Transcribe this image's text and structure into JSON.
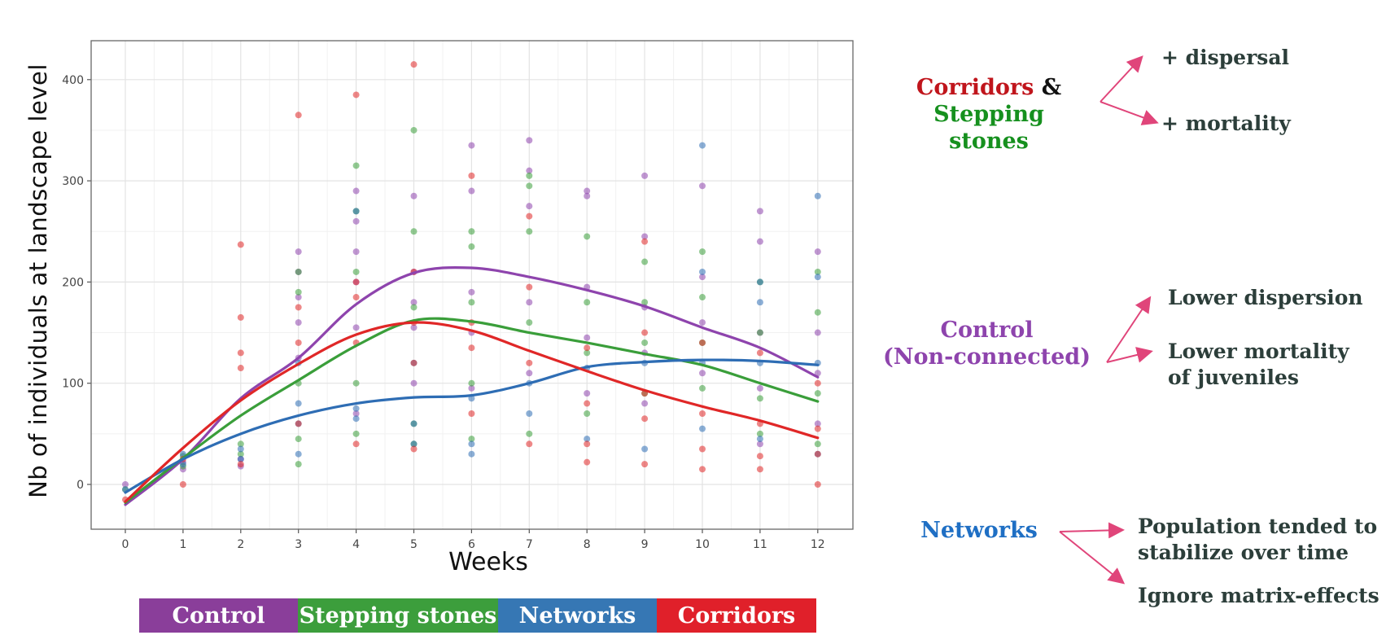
{
  "chart_data": {
    "type": "scatter",
    "ylabel": "Nb of individuals at landscape level",
    "xlabel": "Weeks",
    "x_ticks": [
      "0",
      "1",
      "2",
      "3",
      "4",
      "5",
      "6",
      "7",
      "8",
      "9",
      "10",
      "11",
      "12"
    ],
    "y_ticks": [
      "0",
      "100",
      "200",
      "300",
      "400"
    ],
    "xlim": [
      -0.6,
      12.6
    ],
    "ylim": [
      -45,
      440
    ],
    "grid": true,
    "legend_position": "bottom",
    "series": [
      {
        "name": "Control",
        "color": "#8e44ad",
        "points": [
          [
            0,
            0
          ],
          [
            1,
            15
          ],
          [
            1,
            22
          ],
          [
            2,
            18
          ],
          [
            2,
            25
          ],
          [
            3,
            230
          ],
          [
            3,
            210
          ],
          [
            3,
            185
          ],
          [
            3,
            160
          ],
          [
            3,
            125
          ],
          [
            4,
            290
          ],
          [
            4,
            260
          ],
          [
            4,
            230
          ],
          [
            4,
            200
          ],
          [
            4,
            155
          ],
          [
            4,
            70
          ],
          [
            5,
            285
          ],
          [
            5,
            210
          ],
          [
            5,
            180
          ],
          [
            5,
            155
          ],
          [
            5,
            100
          ],
          [
            6,
            335
          ],
          [
            6,
            290
          ],
          [
            6,
            190
          ],
          [
            6,
            150
          ],
          [
            6,
            95
          ],
          [
            7,
            340
          ],
          [
            7,
            310
          ],
          [
            7,
            275
          ],
          [
            7,
            180
          ],
          [
            7,
            110
          ],
          [
            8,
            290
          ],
          [
            8,
            285
          ],
          [
            8,
            195
          ],
          [
            8,
            145
          ],
          [
            8,
            90
          ],
          [
            9,
            305
          ],
          [
            9,
            245
          ],
          [
            9,
            175
          ],
          [
            9,
            130
          ],
          [
            9,
            80
          ],
          [
            10,
            295
          ],
          [
            10,
            205
          ],
          [
            10,
            160
          ],
          [
            10,
            110
          ],
          [
            11,
            270
          ],
          [
            11,
            240
          ],
          [
            11,
            150
          ],
          [
            11,
            95
          ],
          [
            11,
            40
          ],
          [
            12,
            230
          ],
          [
            12,
            150
          ],
          [
            12,
            110
          ],
          [
            12,
            60
          ]
        ],
        "trend": [
          [
            0,
            -20
          ],
          [
            1,
            25
          ],
          [
            2,
            85
          ],
          [
            3,
            125
          ],
          [
            4,
            178
          ],
          [
            5,
            209
          ],
          [
            6,
            214
          ],
          [
            7,
            205
          ],
          [
            8,
            192
          ],
          [
            9,
            176
          ],
          [
            10,
            155
          ],
          [
            11,
            135
          ],
          [
            12,
            106
          ]
        ]
      },
      {
        "name": "Stepping stones",
        "color": "#3a9e3a",
        "points": [
          [
            0,
            -5
          ],
          [
            1,
            18
          ],
          [
            1,
            28
          ],
          [
            2,
            30
          ],
          [
            2,
            40
          ],
          [
            3,
            210
          ],
          [
            3,
            190
          ],
          [
            3,
            100
          ],
          [
            3,
            45
          ],
          [
            3,
            20
          ],
          [
            4,
            315
          ],
          [
            4,
            270
          ],
          [
            4,
            210
          ],
          [
            4,
            100
          ],
          [
            4,
            50
          ],
          [
            5,
            350
          ],
          [
            5,
            250
          ],
          [
            5,
            175
          ],
          [
            5,
            60
          ],
          [
            5,
            40
          ],
          [
            6,
            250
          ],
          [
            6,
            235
          ],
          [
            6,
            180
          ],
          [
            6,
            100
          ],
          [
            6,
            45
          ],
          [
            7,
            305
          ],
          [
            7,
            295
          ],
          [
            7,
            250
          ],
          [
            7,
            160
          ],
          [
            7,
            50
          ],
          [
            8,
            245
          ],
          [
            8,
            180
          ],
          [
            8,
            130
          ],
          [
            8,
            70
          ],
          [
            9,
            220
          ],
          [
            9,
            180
          ],
          [
            9,
            140
          ],
          [
            9,
            90
          ],
          [
            10,
            230
          ],
          [
            10,
            185
          ],
          [
            10,
            140
          ],
          [
            10,
            95
          ],
          [
            11,
            200
          ],
          [
            11,
            150
          ],
          [
            11,
            85
          ],
          [
            11,
            50
          ],
          [
            12,
            210
          ],
          [
            12,
            170
          ],
          [
            12,
            90
          ],
          [
            12,
            40
          ]
        ],
        "trend": [
          [
            0,
            -18
          ],
          [
            1,
            26
          ],
          [
            2,
            68
          ],
          [
            3,
            103
          ],
          [
            4,
            137
          ],
          [
            5,
            162
          ],
          [
            6,
            161
          ],
          [
            7,
            150
          ],
          [
            8,
            140
          ],
          [
            9,
            129
          ],
          [
            10,
            118
          ],
          [
            11,
            100
          ],
          [
            12,
            82
          ]
        ]
      },
      {
        "name": "Networks",
        "color": "#2e6db4",
        "points": [
          [
            0,
            -5
          ],
          [
            1,
            20
          ],
          [
            1,
            30
          ],
          [
            2,
            25
          ],
          [
            2,
            35
          ],
          [
            3,
            120
          ],
          [
            3,
            80
          ],
          [
            3,
            60
          ],
          [
            3,
            30
          ],
          [
            4,
            270
          ],
          [
            4,
            75
          ],
          [
            4,
            65
          ],
          [
            5,
            120
          ],
          [
            5,
            60
          ],
          [
            5,
            40
          ],
          [
            6,
            85
          ],
          [
            6,
            40
          ],
          [
            6,
            30
          ],
          [
            7,
            100
          ],
          [
            7,
            70
          ],
          [
            8,
            115
          ],
          [
            8,
            45
          ],
          [
            9,
            120
          ],
          [
            9,
            35
          ],
          [
            10,
            335
          ],
          [
            10,
            210
          ],
          [
            10,
            120
          ],
          [
            10,
            55
          ],
          [
            11,
            200
          ],
          [
            11,
            180
          ],
          [
            11,
            120
          ],
          [
            11,
            45
          ],
          [
            12,
            285
          ],
          [
            12,
            205
          ],
          [
            12,
            120
          ],
          [
            12,
            30
          ]
        ],
        "trend": [
          [
            0,
            -8
          ],
          [
            1,
            25
          ],
          [
            2,
            50
          ],
          [
            3,
            68
          ],
          [
            4,
            80
          ],
          [
            5,
            86
          ],
          [
            6,
            88
          ],
          [
            7,
            100
          ],
          [
            8,
            116
          ],
          [
            9,
            121
          ],
          [
            10,
            123
          ],
          [
            11,
            122
          ],
          [
            12,
            118
          ]
        ]
      },
      {
        "name": "Corridors",
        "color": "#e02727",
        "points": [
          [
            0,
            -15
          ],
          [
            1,
            0
          ],
          [
            1,
            25
          ],
          [
            2,
            237
          ],
          [
            2,
            165
          ],
          [
            2,
            130
          ],
          [
            2,
            115
          ],
          [
            2,
            20
          ],
          [
            3,
            365
          ],
          [
            3,
            175
          ],
          [
            3,
            140
          ],
          [
            3,
            60
          ],
          [
            4,
            385
          ],
          [
            4,
            200
          ],
          [
            4,
            185
          ],
          [
            4,
            140
          ],
          [
            4,
            40
          ],
          [
            5,
            415
          ],
          [
            5,
            210
          ],
          [
            5,
            160
          ],
          [
            5,
            120
          ],
          [
            5,
            35
          ],
          [
            6,
            305
          ],
          [
            6,
            160
          ],
          [
            6,
            135
          ],
          [
            6,
            70
          ],
          [
            7,
            265
          ],
          [
            7,
            195
          ],
          [
            7,
            120
          ],
          [
            7,
            40
          ],
          [
            8,
            135
          ],
          [
            8,
            80
          ],
          [
            8,
            40
          ],
          [
            8,
            22
          ],
          [
            9,
            240
          ],
          [
            9,
            150
          ],
          [
            9,
            90
          ],
          [
            9,
            65
          ],
          [
            9,
            20
          ],
          [
            10,
            140
          ],
          [
            10,
            70
          ],
          [
            10,
            35
          ],
          [
            10,
            15
          ],
          [
            11,
            130
          ],
          [
            11,
            60
          ],
          [
            11,
            28
          ],
          [
            11,
            15
          ],
          [
            12,
            100
          ],
          [
            12,
            55
          ],
          [
            12,
            30
          ],
          [
            12,
            0
          ]
        ],
        "trend": [
          [
            0,
            -17
          ],
          [
            1,
            36
          ],
          [
            2,
            83
          ],
          [
            3,
            119
          ],
          [
            4,
            148
          ],
          [
            5,
            160
          ],
          [
            6,
            152
          ],
          [
            7,
            132
          ],
          [
            8,
            112
          ],
          [
            9,
            93
          ],
          [
            10,
            77
          ],
          [
            11,
            63
          ],
          [
            12,
            46
          ]
        ]
      }
    ]
  },
  "legend": [
    {
      "label": "Control",
      "color": "#8a3e9a"
    },
    {
      "label": "Stepping stones",
      "color": "#3c9e3c"
    },
    {
      "label": "Networks",
      "color": "#3677b4"
    },
    {
      "label": "Corridors",
      "color": "#e0202a"
    }
  ],
  "annotations": {
    "group1": {
      "corridors": "Corridors",
      "amp": "&",
      "stepping": "Stepping stones",
      "items": [
        "+ dispersal",
        "+ mortality"
      ],
      "colors": {
        "corridors": "#c0151c",
        "stepping": "#16901e"
      }
    },
    "group2": {
      "title_line1": "Control",
      "title_line2": "(Non-connected)",
      "items": [
        "Lower dispersion",
        "Lower mortality",
        "of juveniles"
      ],
      "color": "#8e44ad"
    },
    "group3": {
      "title": "Networks",
      "items": [
        "Population tended to",
        "stabilize over time",
        "Ignore matrix-effects"
      ],
      "color": "#1f6fc4"
    },
    "arrow_color": "#e0457a"
  }
}
